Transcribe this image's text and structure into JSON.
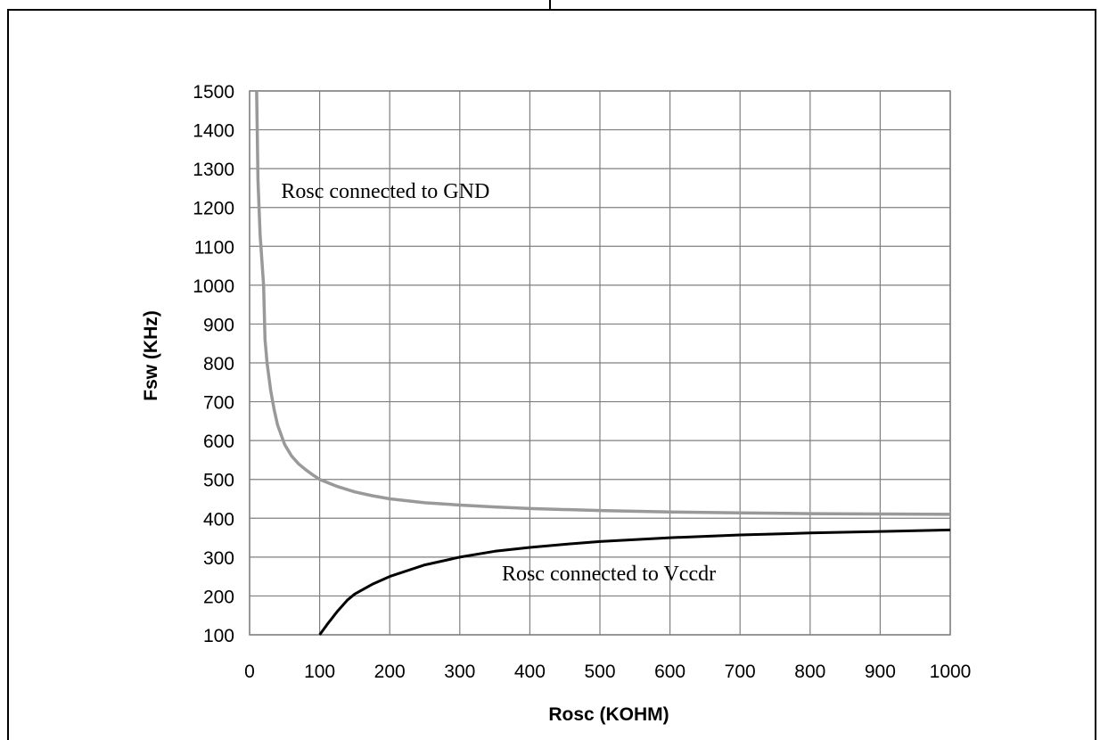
{
  "chart_data": {
    "type": "line",
    "xlabel": "Rosc (KOHM)",
    "ylabel": "Fsw (KHz)",
    "xlim": [
      0,
      1000
    ],
    "ylim": [
      100,
      1500
    ],
    "x_ticks": [
      0,
      100,
      200,
      300,
      400,
      500,
      600,
      700,
      800,
      900,
      1000
    ],
    "y_ticks": [
      100,
      200,
      300,
      400,
      500,
      600,
      700,
      800,
      900,
      1000,
      1100,
      1200,
      1300,
      1400,
      1500
    ],
    "grid": true,
    "series": [
      {
        "name": "Rosc connected to GND",
        "color": "#999999",
        "points": [
          [
            10,
            1500
          ],
          [
            12,
            1270
          ],
          [
            15,
            1130
          ],
          [
            20,
            1000
          ],
          [
            22,
            860
          ],
          [
            25,
            800
          ],
          [
            30,
            730
          ],
          [
            35,
            680
          ],
          [
            40,
            640
          ],
          [
            50,
            590
          ],
          [
            60,
            560
          ],
          [
            70,
            540
          ],
          [
            80,
            525
          ],
          [
            90,
            512
          ],
          [
            100,
            500
          ],
          [
            125,
            482
          ],
          [
            150,
            468
          ],
          [
            175,
            458
          ],
          [
            200,
            450
          ],
          [
            250,
            440
          ],
          [
            300,
            434
          ],
          [
            350,
            429
          ],
          [
            400,
            425
          ],
          [
            500,
            420
          ],
          [
            600,
            416
          ],
          [
            700,
            414
          ],
          [
            800,
            412
          ],
          [
            900,
            411
          ],
          [
            1000,
            410
          ]
        ]
      },
      {
        "name": "Rosc connected to Vccdr",
        "color": "#000000",
        "points": [
          [
            100,
            100
          ],
          [
            110,
            125
          ],
          [
            125,
            160
          ],
          [
            140,
            190
          ],
          [
            150,
            205
          ],
          [
            175,
            230
          ],
          [
            200,
            250
          ],
          [
            250,
            280
          ],
          [
            300,
            300
          ],
          [
            350,
            315
          ],
          [
            400,
            325
          ],
          [
            450,
            333
          ],
          [
            500,
            340
          ],
          [
            600,
            350
          ],
          [
            700,
            357
          ],
          [
            800,
            362
          ],
          [
            900,
            366
          ],
          [
            1000,
            370
          ]
        ]
      }
    ],
    "annotations": [
      {
        "text": "Rosc connected to GND",
        "x": 45,
        "y": 1225
      },
      {
        "text": "Rosc connected to Vccdr",
        "x": 360,
        "y": 240
      }
    ]
  }
}
